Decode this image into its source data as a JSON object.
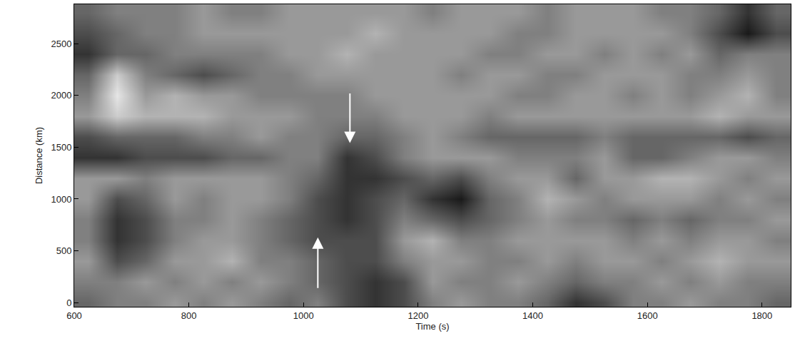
{
  "chart_data": {
    "type": "heatmap",
    "x_label": "Time (s)",
    "y_label": "Distance (km)",
    "xlim": [
      600,
      1850
    ],
    "ylim": [
      -40,
      2880
    ],
    "xticks": [
      600,
      800,
      1000,
      1200,
      1400,
      1600,
      1800
    ],
    "yticks": [
      0,
      500,
      1000,
      1500,
      2000,
      2500
    ],
    "zlim": [
      0,
      1
    ],
    "x": [
      625,
      675,
      725,
      775,
      825,
      875,
      925,
      975,
      1025,
      1075,
      1125,
      1175,
      1225,
      1275,
      1325,
      1375,
      1425,
      1475,
      1525,
      1575,
      1625,
      1675,
      1725,
      1775,
      1825
    ],
    "y": [
      0,
      200,
      400,
      600,
      800,
      1000,
      1200,
      1400,
      1600,
      1800,
      2000,
      2200,
      2400,
      2600,
      2800
    ],
    "cells": [
      [
        0.4,
        0.5,
        0.5,
        0.6,
        0.5,
        0.6,
        0.5,
        0.4,
        0.5,
        0.3,
        0.2,
        0.3,
        0.5,
        0.6,
        0.5,
        0.5,
        0.4,
        0.2,
        0.3,
        0.5,
        0.5,
        0.6,
        0.5,
        0.5,
        0.4
      ],
      [
        0.5,
        0.5,
        0.6,
        0.5,
        0.6,
        0.5,
        0.6,
        0.5,
        0.4,
        0.3,
        0.2,
        0.3,
        0.6,
        0.5,
        0.5,
        0.6,
        0.5,
        0.4,
        0.5,
        0.5,
        0.6,
        0.5,
        0.6,
        0.5,
        0.5
      ],
      [
        0.6,
        0.3,
        0.4,
        0.6,
        0.6,
        0.7,
        0.5,
        0.5,
        0.4,
        0.3,
        0.3,
        0.5,
        0.6,
        0.6,
        0.5,
        0.5,
        0.6,
        0.5,
        0.6,
        0.6,
        0.5,
        0.6,
        0.7,
        0.6,
        0.6
      ],
      [
        0.5,
        0.2,
        0.3,
        0.5,
        0.6,
        0.6,
        0.5,
        0.4,
        0.3,
        0.3,
        0.3,
        0.6,
        0.7,
        0.5,
        0.5,
        0.6,
        0.6,
        0.6,
        0.6,
        0.5,
        0.6,
        0.5,
        0.6,
        0.6,
        0.5
      ],
      [
        0.5,
        0.2,
        0.3,
        0.5,
        0.5,
        0.6,
        0.5,
        0.4,
        0.3,
        0.2,
        0.3,
        0.5,
        0.4,
        0.3,
        0.4,
        0.5,
        0.6,
        0.5,
        0.5,
        0.4,
        0.5,
        0.4,
        0.5,
        0.5,
        0.6
      ],
      [
        0.6,
        0.3,
        0.4,
        0.6,
        0.5,
        0.6,
        0.6,
        0.5,
        0.3,
        0.2,
        0.3,
        0.4,
        0.2,
        0.1,
        0.4,
        0.5,
        0.7,
        0.6,
        0.5,
        0.6,
        0.6,
        0.6,
        0.5,
        0.6,
        0.5
      ],
      [
        0.6,
        0.6,
        0.5,
        0.6,
        0.6,
        0.6,
        0.6,
        0.5,
        0.4,
        0.2,
        0.2,
        0.3,
        0.4,
        0.3,
        0.5,
        0.6,
        0.6,
        0.4,
        0.6,
        0.6,
        0.7,
        0.7,
        0.6,
        0.5,
        0.6
      ],
      [
        0.2,
        0.2,
        0.3,
        0.3,
        0.3,
        0.4,
        0.4,
        0.5,
        0.5,
        0.2,
        0.3,
        0.5,
        0.6,
        0.6,
        0.6,
        0.5,
        0.5,
        0.5,
        0.6,
        0.4,
        0.4,
        0.5,
        0.6,
        0.6,
        0.5
      ],
      [
        0.3,
        0.4,
        0.4,
        0.4,
        0.5,
        0.5,
        0.6,
        0.5,
        0.5,
        0.4,
        0.4,
        0.5,
        0.6,
        0.5,
        0.4,
        0.4,
        0.4,
        0.4,
        0.5,
        0.4,
        0.4,
        0.4,
        0.4,
        0.3,
        0.4
      ],
      [
        0.6,
        0.8,
        0.7,
        0.7,
        0.7,
        0.6,
        0.6,
        0.6,
        0.5,
        0.5,
        0.5,
        0.6,
        0.6,
        0.6,
        0.5,
        0.6,
        0.6,
        0.6,
        0.6,
        0.6,
        0.6,
        0.6,
        0.7,
        0.6,
        0.6
      ],
      [
        0.5,
        0.9,
        0.6,
        0.7,
        0.6,
        0.6,
        0.5,
        0.5,
        0.5,
        0.5,
        0.6,
        0.6,
        0.6,
        0.6,
        0.6,
        0.5,
        0.5,
        0.6,
        0.6,
        0.5,
        0.6,
        0.5,
        0.6,
        0.7,
        0.5
      ],
      [
        0.4,
        0.8,
        0.5,
        0.4,
        0.3,
        0.4,
        0.5,
        0.5,
        0.6,
        0.6,
        0.6,
        0.6,
        0.6,
        0.5,
        0.6,
        0.6,
        0.5,
        0.5,
        0.6,
        0.6,
        0.6,
        0.5,
        0.5,
        0.6,
        0.5
      ],
      [
        0.2,
        0.4,
        0.4,
        0.5,
        0.5,
        0.5,
        0.5,
        0.6,
        0.6,
        0.7,
        0.6,
        0.6,
        0.6,
        0.6,
        0.5,
        0.5,
        0.6,
        0.6,
        0.5,
        0.6,
        0.5,
        0.6,
        0.4,
        0.5,
        0.5
      ],
      [
        0.3,
        0.4,
        0.5,
        0.5,
        0.6,
        0.6,
        0.6,
        0.6,
        0.6,
        0.6,
        0.7,
        0.6,
        0.6,
        0.6,
        0.6,
        0.5,
        0.5,
        0.6,
        0.6,
        0.6,
        0.6,
        0.5,
        0.3,
        0.1,
        0.3
      ],
      [
        0.4,
        0.5,
        0.5,
        0.5,
        0.6,
        0.5,
        0.5,
        0.6,
        0.6,
        0.6,
        0.6,
        0.6,
        0.5,
        0.6,
        0.6,
        0.6,
        0.5,
        0.6,
        0.6,
        0.6,
        0.5,
        0.5,
        0.4,
        0.2,
        0.4
      ]
    ],
    "arrows": [
      {
        "x": 1081,
        "y": 1540,
        "from_y": 2030,
        "direction": "down"
      },
      {
        "x": 1025,
        "y": 630,
        "from_y": 130,
        "direction": "up"
      }
    ],
    "color": "gray"
  }
}
